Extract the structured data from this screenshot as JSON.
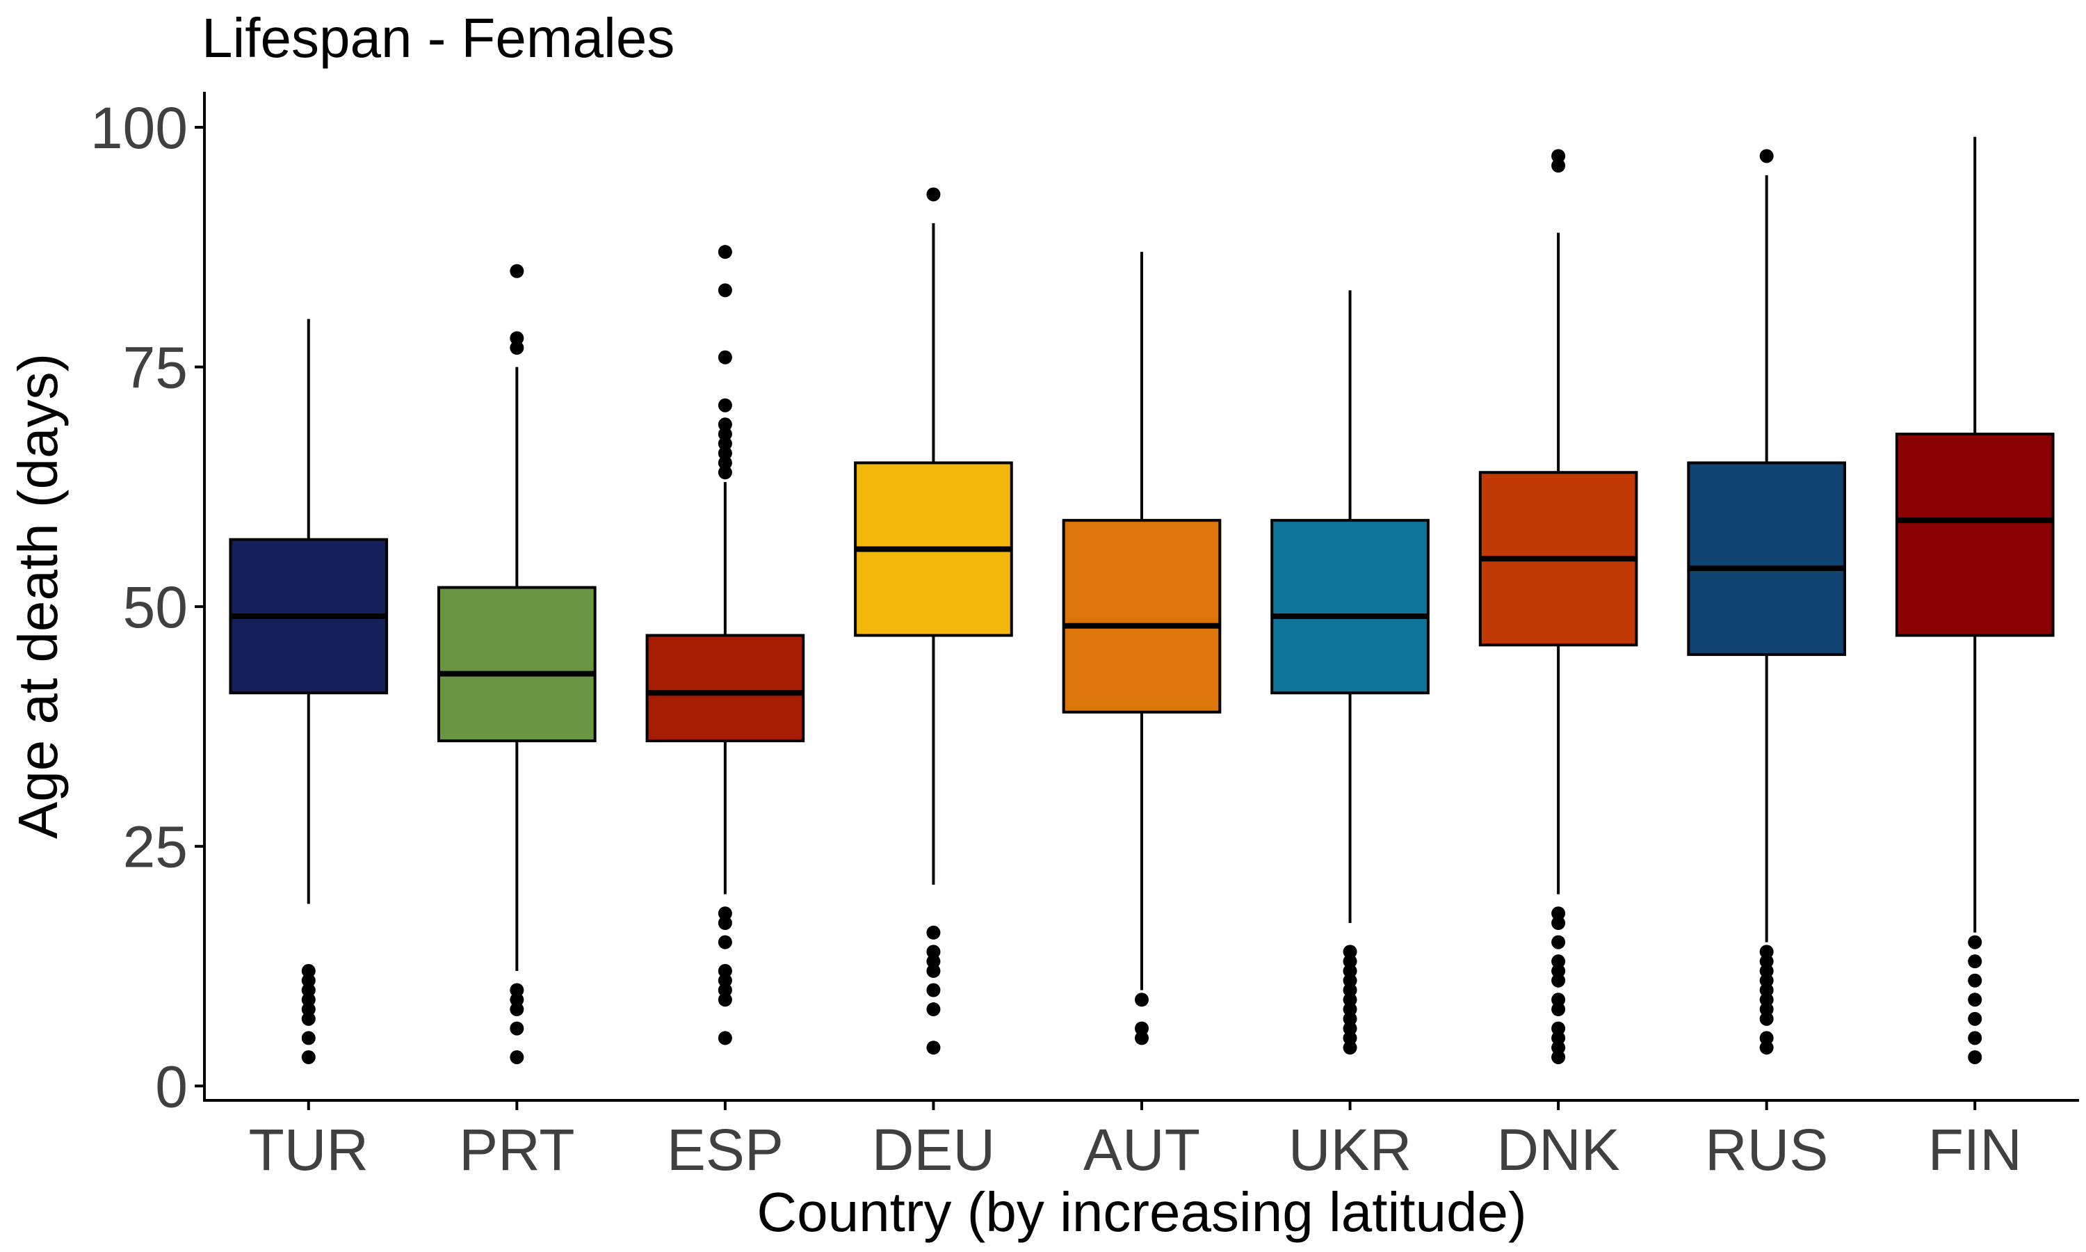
{
  "chart_data": {
    "type": "boxplot",
    "title": "Lifespan - Females",
    "xlabel": "Country (by increasing latitude)",
    "ylabel": "Age at death (days)",
    "ylim": [
      -1.5,
      103.7
    ],
    "yticks": [
      0,
      25,
      50,
      75,
      100
    ],
    "grid": false,
    "legend": "none",
    "categories": [
      "TUR",
      "PRT",
      "ESP",
      "DEU",
      "AUT",
      "UKR",
      "DNK",
      "RUS",
      "FIN"
    ],
    "series": [
      {
        "name": "TUR",
        "color": "#14205A",
        "whisker_low": 19,
        "q1": 41,
        "median": 49,
        "q3": 57,
        "whisker_high": 80,
        "outliers": [
          3,
          5,
          7,
          8,
          9,
          10,
          11,
          12
        ]
      },
      {
        "name": "PRT",
        "color": "#6A9642",
        "whisker_low": 12,
        "q1": 36,
        "median": 43,
        "q3": 52,
        "whisker_high": 75,
        "outliers": [
          3,
          6,
          8,
          9,
          10,
          77,
          78,
          85
        ]
      },
      {
        "name": "ESP",
        "color": "#A51C03",
        "whisker_low": 20,
        "q1": 36,
        "median": 41,
        "q3": 47,
        "whisker_high": 63,
        "outliers": [
          5,
          9,
          10,
          11,
          12,
          15,
          17,
          18,
          64,
          65,
          66,
          67,
          68,
          69,
          71,
          76,
          83,
          87
        ]
      },
      {
        "name": "DEU",
        "color": "#F3B70B",
        "whisker_low": 21,
        "q1": 47,
        "median": 56,
        "q3": 65,
        "whisker_high": 90,
        "outliers": [
          4,
          8,
          10,
          12,
          13,
          14,
          16,
          93
        ]
      },
      {
        "name": "AUT",
        "color": "#DC7507",
        "whisker_low": 10,
        "q1": 39,
        "median": 48,
        "q3": 59,
        "whisker_high": 87,
        "outliers": [
          5,
          6,
          9
        ]
      },
      {
        "name": "UKR",
        "color": "#10759B",
        "whisker_low": 17,
        "q1": 41,
        "median": 49,
        "q3": 59,
        "whisker_high": 83,
        "outliers": [
          4,
          5,
          6,
          7,
          8,
          9,
          10,
          11,
          12,
          13,
          14
        ]
      },
      {
        "name": "DNK",
        "color": "#C13A06",
        "whisker_low": 20,
        "q1": 46,
        "median": 55,
        "q3": 64,
        "whisker_high": 89,
        "outliers": [
          3,
          4,
          5,
          6,
          8,
          9,
          11,
          12,
          13,
          15,
          17,
          18,
          96,
          97
        ]
      },
      {
        "name": "RUS",
        "color": "#0F4471",
        "whisker_low": 15,
        "q1": 45,
        "median": 54,
        "q3": 65,
        "whisker_high": 95,
        "outliers": [
          4,
          5,
          7,
          8,
          9,
          10,
          11,
          12,
          13,
          14,
          97
        ]
      },
      {
        "name": "FIN",
        "color": "#8C0203",
        "whisker_low": 16,
        "q1": 47,
        "median": 59,
        "q3": 68,
        "whisker_high": 99,
        "outliers": [
          3,
          5,
          7,
          9,
          11,
          13,
          15
        ]
      }
    ]
  }
}
